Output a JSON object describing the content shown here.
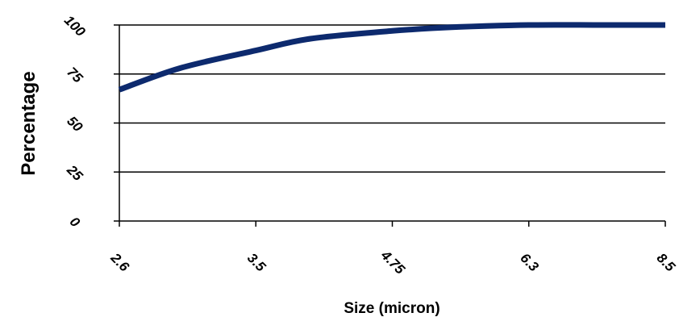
{
  "chart_data": {
    "type": "line",
    "title": "",
    "xlabel": "Size (micron)",
    "ylabel": "Percentage",
    "categories": [
      "2.6",
      "3.5",
      "4.75",
      "6.3",
      "8.5"
    ],
    "yticks": [
      "0",
      "25",
      "50",
      "75",
      "100"
    ],
    "ylim": [
      0,
      100
    ],
    "grid": true,
    "series": [
      {
        "color": "#0d2a6e",
        "x": [
          2.6,
          3.0,
          3.5,
          4.0,
          4.75,
          5.5,
          6.3,
          7.5,
          8.5
        ],
        "values": [
          67,
          78,
          87,
          93,
          97,
          99,
          100,
          100,
          100
        ]
      }
    ]
  }
}
